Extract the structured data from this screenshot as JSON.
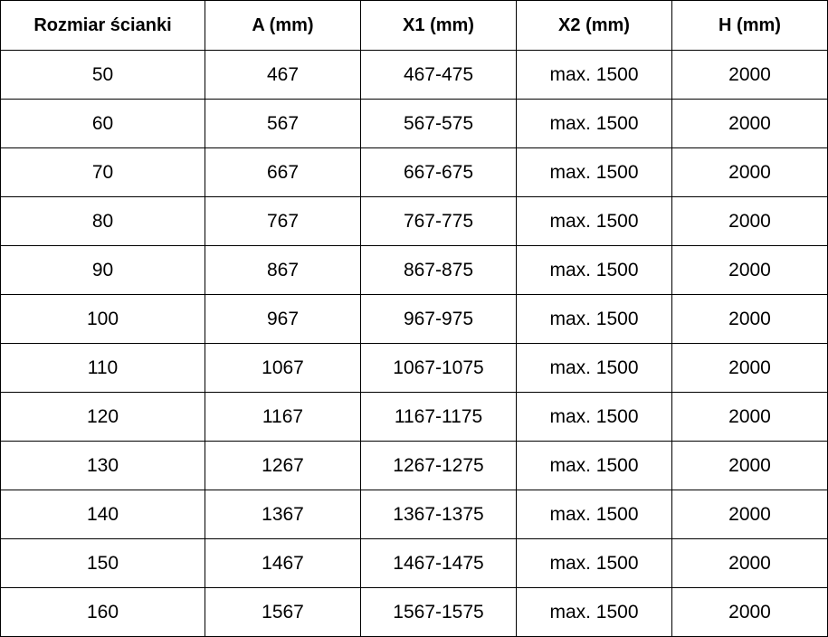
{
  "table": {
    "headers": [
      "Rozmiar ścianki",
      "A (mm)",
      "X1 (mm)",
      "X2 (mm)",
      "H (mm)"
    ],
    "rows": [
      [
        "50",
        "467",
        "467-475",
        "max. 1500",
        "2000"
      ],
      [
        "60",
        "567",
        "567-575",
        "max. 1500",
        "2000"
      ],
      [
        "70",
        "667",
        "667-675",
        "max. 1500",
        "2000"
      ],
      [
        "80",
        "767",
        "767-775",
        "max. 1500",
        "2000"
      ],
      [
        "90",
        "867",
        "867-875",
        "max. 1500",
        "2000"
      ],
      [
        "100",
        "967",
        "967-975",
        "max. 1500",
        "2000"
      ],
      [
        "110",
        "1067",
        "1067-1075",
        "max. 1500",
        "2000"
      ],
      [
        "120",
        "1167",
        "1167-1175",
        "max. 1500",
        "2000"
      ],
      [
        "130",
        "1267",
        "1267-1275",
        "max. 1500",
        "2000"
      ],
      [
        "140",
        "1367",
        "1367-1375",
        "max. 1500",
        "2000"
      ],
      [
        "150",
        "1467",
        "1467-1475",
        "max. 1500",
        "2000"
      ],
      [
        "160",
        "1567",
        "1567-1575",
        "max. 1500",
        "2000"
      ]
    ]
  }
}
